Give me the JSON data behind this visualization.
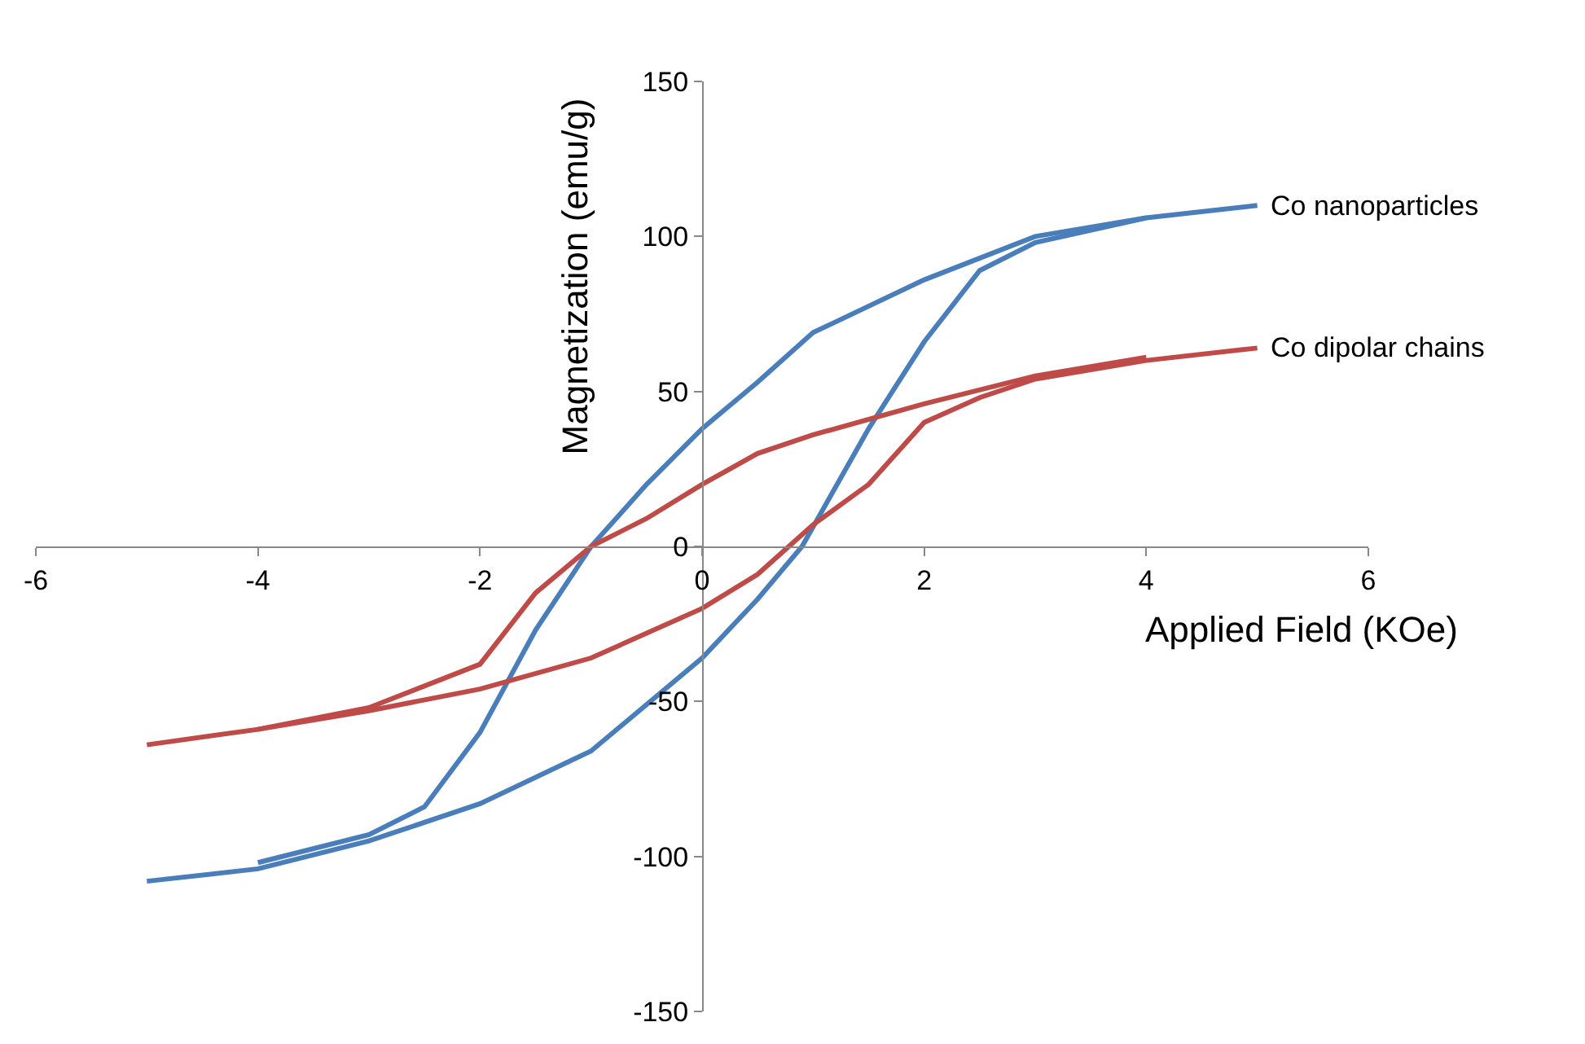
{
  "chart_data": {
    "type": "line",
    "xlabel": "Applied Field (KOe)",
    "ylabel": "Magnetization (emu/g)",
    "xlim": [
      -6,
      6
    ],
    "xticks": [
      -6,
      -4,
      -2,
      0,
      2,
      4,
      6
    ],
    "ylim": [
      -150,
      150
    ],
    "yticks": [
      -150,
      -100,
      -50,
      0,
      50,
      100,
      150
    ],
    "grid": false,
    "legend": false,
    "marker": "none",
    "line_style": "solid",
    "series": [
      {
        "color": "#4a7ebb",
        "x": [
          -4,
          -3,
          -2.5,
          -2,
          -1.5,
          -1,
          -0.5,
          0,
          0.5,
          1,
          2,
          3,
          4
        ],
        "values": [
          -102,
          -93,
          -84,
          -60,
          -27,
          0,
          20,
          38,
          53,
          69,
          86,
          100,
          106
        ]
      },
      {
        "name": "Co nanoparticles",
        "color": "#4a7ebb",
        "x": [
          -5,
          -4,
          -3,
          -2,
          -1,
          0,
          0.5,
          0.9,
          1.5,
          2,
          2.5,
          3,
          4,
          5
        ],
        "values": [
          -108,
          -104,
          -95,
          -83,
          -66,
          -36,
          -17,
          0,
          38,
          66,
          89,
          98,
          106,
          110
        ]
      },
      {
        "color": "#be4b48",
        "x": [
          -4,
          -3,
          -2,
          -1.5,
          -1,
          -0.5,
          0,
          0.5,
          1,
          2,
          3,
          4
        ],
        "values": [
          -59,
          -52,
          -38,
          -15,
          0,
          9,
          20,
          30,
          36,
          46,
          55,
          61
        ]
      },
      {
        "name": "Co dipolar chains",
        "color": "#be4b48",
        "x": [
          -5,
          -4,
          -3,
          -2,
          -1,
          0,
          0.5,
          1,
          1.5,
          2,
          2.5,
          3,
          4,
          5
        ],
        "values": [
          -64,
          -59,
          -53,
          -46,
          -36,
          -20,
          -9,
          7,
          20,
          40,
          48,
          54,
          60,
          64
        ]
      }
    ]
  }
}
